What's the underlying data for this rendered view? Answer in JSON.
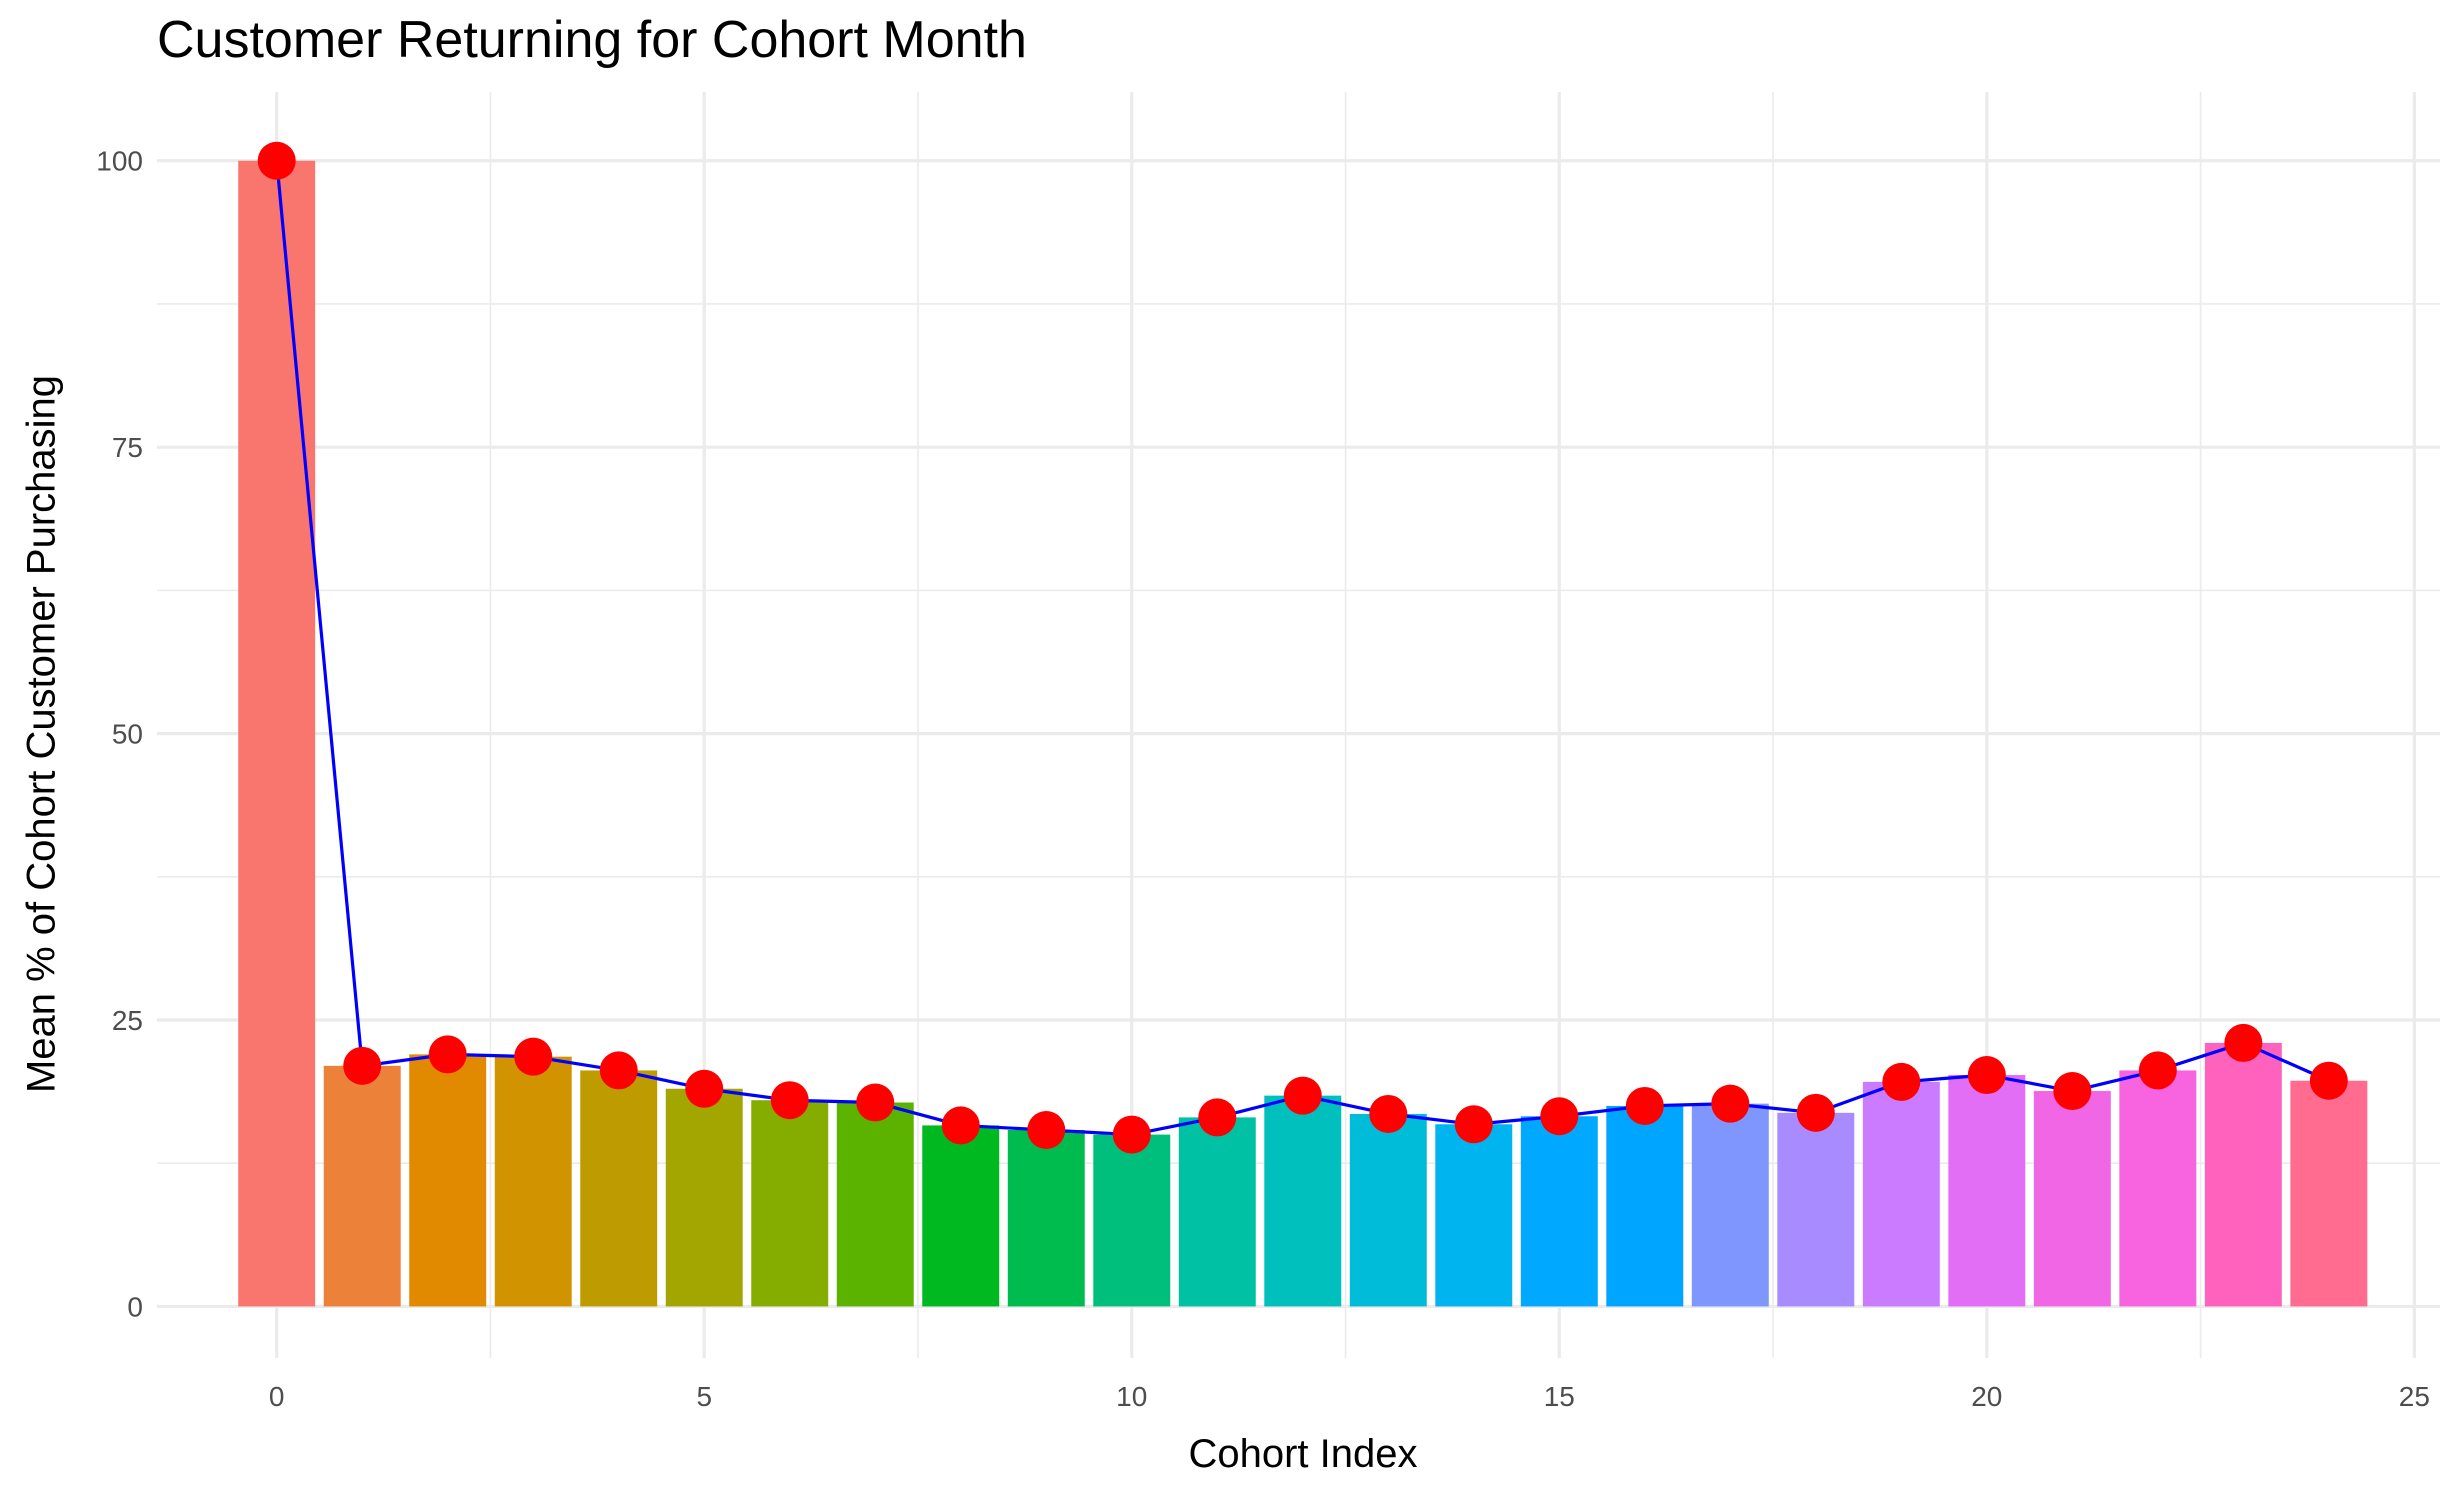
{
  "chart_data": {
    "type": "bar",
    "title": "Customer Returning for Cohort Month",
    "xlabel": "Cohort Index",
    "ylabel": "Mean % of Cohort Customer Purchasing",
    "xlim": [
      -1.4,
      25.3
    ],
    "ylim": [
      -4.5,
      106
    ],
    "x_ticks": [
      0,
      5,
      10,
      15,
      20,
      25
    ],
    "y_ticks": [
      0,
      25,
      50,
      75,
      100
    ],
    "grid": true,
    "legend": "none",
    "categories": [
      0,
      1,
      2,
      3,
      4,
      5,
      6,
      7,
      8,
      9,
      10,
      11,
      12,
      13,
      14,
      15,
      16,
      17,
      18,
      19,
      20,
      21,
      22,
      23,
      24
    ],
    "values": [
      100,
      21.0,
      22.0,
      21.8,
      20.6,
      19.0,
      18.0,
      17.8,
      15.8,
      15.4,
      15.0,
      16.5,
      18.4,
      16.8,
      15.9,
      16.6,
      17.5,
      17.7,
      16.9,
      19.6,
      20.2,
      18.8,
      20.6,
      23.0,
      19.7
    ],
    "bar_colors": [
      "#F8766D",
      "#EC8239",
      "#E18A00",
      "#D19300",
      "#BE9C00",
      "#A3A500",
      "#85AD00",
      "#5BB300",
      "#00B81F",
      "#00BB4E",
      "#00BF7D",
      "#00C1A3",
      "#00C0BE",
      "#00BCD8",
      "#00B4EF",
      "#00A9FF",
      "#00A5FF",
      "#7F96FF",
      "#A88BFF",
      "#CB7BFF",
      "#E36EF6",
      "#F166E4",
      "#F863DF",
      "#FF62BC",
      "#FF6C90"
    ],
    "line_color": "#0000FF",
    "point_color": "#FF0000"
  }
}
